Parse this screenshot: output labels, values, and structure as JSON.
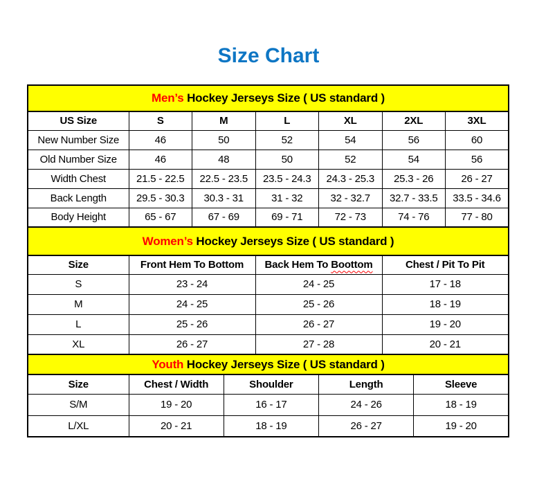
{
  "title": "Size Chart",
  "colors": {
    "title_blue": "#0e76c4",
    "banner_yellow": "#ffff00",
    "accent_red": "#ff0000",
    "text_black": "#000000",
    "border_black": "#000000",
    "background": "#ffffff"
  },
  "mens": {
    "banner_highlight": "Men’s",
    "banner_text": " Hockey Jerseys Size ( US standard )",
    "header": [
      "US Size",
      "S",
      "M",
      "L",
      "XL",
      "2XL",
      "3XL"
    ],
    "rows": [
      {
        "label": "New Number Size",
        "values": [
          "46",
          "50",
          "52",
          "54",
          "56",
          "60"
        ]
      },
      {
        "label": "Old Number Size",
        "values": [
          "46",
          "48",
          "50",
          "52",
          "54",
          "56"
        ]
      },
      {
        "label": "Width Chest",
        "values": [
          "21.5 - 22.5",
          "22.5 - 23.5",
          "23.5 - 24.3",
          "24.3 - 25.3",
          "25.3 - 26",
          "26 - 27"
        ]
      },
      {
        "label": "Back Length",
        "values": [
          "29.5 - 30.3",
          "30.3 - 31",
          "31 - 32",
          "32 - 32.7",
          "32.7 - 33.5",
          "33.5 - 34.6"
        ]
      },
      {
        "label": "Body Height",
        "values": [
          "65 - 67",
          "67 - 69",
          "69 - 71",
          "72 - 73",
          "74 - 76",
          "77 - 80"
        ]
      }
    ]
  },
  "womens": {
    "banner_highlight": "Women’s",
    "banner_text": " Hockey Jerseys Size ( US standard )",
    "header_size": "Size",
    "header_front_hem": "Front Hem To Bottom",
    "header_back_hem_prefix": "Back Hem To ",
    "header_back_hem_wavy": "Boottom",
    "header_chest": "Chest / Pit To Pit",
    "rows": [
      {
        "label": "S",
        "values": [
          "23 - 24",
          "24 - 25",
          "17 - 18"
        ]
      },
      {
        "label": "M",
        "values": [
          "24 - 25",
          "25 - 26",
          "18 - 19"
        ]
      },
      {
        "label": "L",
        "values": [
          "25 - 26",
          "26 - 27",
          "19 - 20"
        ]
      },
      {
        "label": "XL",
        "values": [
          "26 - 27",
          "27 - 28",
          "20 - 21"
        ]
      }
    ]
  },
  "youth": {
    "banner_highlight": "Youth",
    "banner_text": " Hockey Jerseys Size ( US standard )",
    "header": [
      "Size",
      "Chest / Width",
      "Shoulder",
      "Length",
      "Sleeve"
    ],
    "rows": [
      {
        "label": "S/M",
        "values": [
          "19 - 20",
          "16 - 17",
          "24 - 26",
          "18 - 19"
        ]
      },
      {
        "label": "L/XL",
        "values": [
          "20 - 21",
          "18 - 19",
          "26 - 27",
          "19 - 20"
        ]
      }
    ]
  }
}
